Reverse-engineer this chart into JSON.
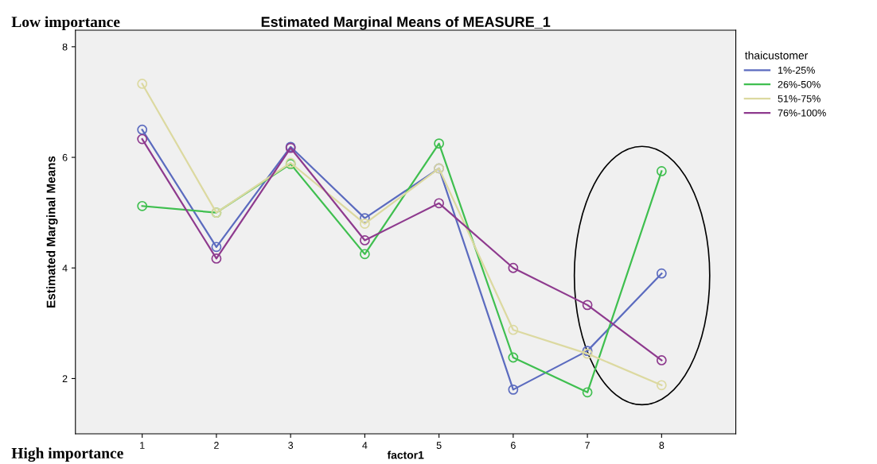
{
  "chart_data": {
    "type": "line",
    "title": "Estimated Marginal Means of MEASURE_1",
    "xlabel": "factor1",
    "ylabel": "Estimated Marginal Means",
    "legend_title": "thaicustomer",
    "x": [
      1,
      2,
      3,
      4,
      5,
      6,
      7,
      8
    ],
    "series": [
      {
        "name": "1%-25%",
        "color": "#5b6bbf",
        "values": [
          6.5,
          4.38,
          6.19,
          4.9,
          5.8,
          1.8,
          2.5,
          3.9
        ]
      },
      {
        "name": "26%-50%",
        "color": "#3fbf4f",
        "values": [
          5.12,
          5.0,
          5.88,
          4.25,
          6.25,
          2.38,
          1.75,
          5.75
        ]
      },
      {
        "name": "51%-75%",
        "color": "#dcd9a0",
        "values": [
          7.33,
          5.0,
          5.9,
          4.8,
          5.8,
          2.88,
          2.45,
          1.88
        ]
      },
      {
        "name": "76%-100%",
        "color": "#8e3a8e",
        "values": [
          6.33,
          4.17,
          6.17,
          4.5,
          5.17,
          4.0,
          3.33,
          2.33
        ]
      }
    ],
    "xlim": [
      0.1,
      9
    ],
    "ylim": [
      1,
      8.3
    ],
    "xticks": [
      1,
      2,
      3,
      4,
      5,
      6,
      7,
      8
    ],
    "yticks": [
      2,
      4,
      6,
      8
    ],
    "marker": "circle",
    "grid": false,
    "legend": "top right",
    "annotations": [
      "Low importance",
      "High importance"
    ]
  }
}
